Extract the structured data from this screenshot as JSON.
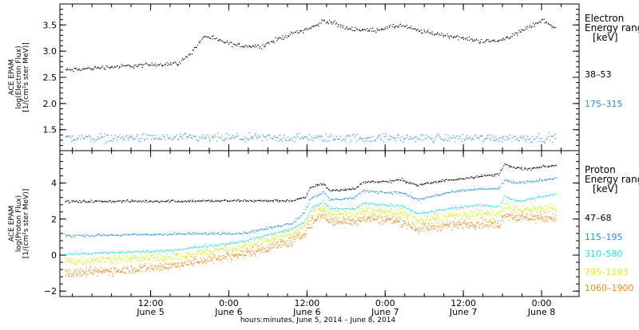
{
  "chart_data": [
    {
      "panel": "electron",
      "type": "scatter",
      "ylabel": [
        "ACE EPAM",
        "log(Electron Flux)",
        "[1/(cm²s ster MeV)]"
      ],
      "ylim": [
        1.1,
        3.9
      ],
      "yticks": [
        1.5,
        2.0,
        2.5,
        3.0,
        3.5
      ],
      "ytick_labels": [
        "1.5",
        "2.0",
        "2.5",
        "3.0",
        "3.5"
      ],
      "legend": {
        "title_line1": "Electron",
        "title_line2": "Energy range",
        "units": "[keV]"
      },
      "series": [
        {
          "name": "38–53",
          "color": "#000000",
          "knots": [
            [
              0.0,
              2.65
            ],
            [
              0.1,
              2.7
            ],
            [
              0.2,
              2.73
            ],
            [
              0.34,
              2.78
            ],
            [
              0.38,
              3.0
            ],
            [
              0.42,
              3.3
            ],
            [
              0.47,
              3.2
            ],
            [
              0.52,
              3.12
            ],
            [
              0.6,
              3.1
            ],
            [
              0.68,
              3.3
            ],
            [
              0.78,
              3.5
            ],
            [
              0.8,
              3.6
            ],
            [
              0.83,
              3.55
            ],
            [
              0.87,
              3.45
            ],
            [
              0.95,
              3.4
            ],
            [
              1.05,
              3.5
            ],
            [
              1.1,
              3.4
            ],
            [
              1.2,
              3.3
            ],
            [
              1.3,
              3.2
            ],
            [
              1.36,
              3.2
            ],
            [
              1.42,
              3.35
            ],
            [
              1.5,
              3.6
            ],
            [
              1.53,
              3.5
            ],
            [
              1.54,
              3.45
            ]
          ]
        },
        {
          "name": "175–315",
          "color": "#1e90dc",
          "knots": [
            [
              0.0,
              1.35
            ],
            [
              1.54,
              1.35
            ]
          ]
        }
      ]
    },
    {
      "panel": "proton",
      "type": "scatter",
      "ylabel": [
        "ACE EPAM",
        "log(Proton Flux)",
        "[1/(cm²s ster MeV)]"
      ],
      "ylim": [
        -2.3,
        5.8
      ],
      "yticks": [
        -2,
        0,
        2,
        4
      ],
      "ytick_labels": [
        "−2",
        "0",
        "2",
        "4"
      ],
      "legend": {
        "title_line1": "Proton",
        "title_line2": "Energy range",
        "units": "[keV]"
      },
      "series": [
        {
          "name": "47–68",
          "color": "#000000",
          "knots": [
            [
              0.0,
              3.0
            ],
            [
              0.7,
              3.05
            ],
            [
              0.74,
              3.2
            ],
            [
              0.76,
              3.8
            ],
            [
              0.8,
              4.0
            ],
            [
              0.82,
              3.6
            ],
            [
              0.9,
              3.7
            ],
            [
              0.93,
              4.1
            ],
            [
              1.0,
              4.1
            ],
            [
              1.05,
              4.2
            ],
            [
              1.1,
              3.9
            ],
            [
              1.2,
              4.2
            ],
            [
              1.3,
              4.4
            ],
            [
              1.36,
              4.5
            ],
            [
              1.38,
              5.1
            ],
            [
              1.4,
              4.9
            ],
            [
              1.45,
              4.8
            ],
            [
              1.54,
              5.0
            ]
          ]
        },
        {
          "name": "115–195",
          "color": "#1e90dc",
          "knots": [
            [
              0.0,
              1.1
            ],
            [
              0.55,
              1.25
            ],
            [
              0.7,
              1.8
            ],
            [
              0.74,
              2.4
            ],
            [
              0.76,
              3.2
            ],
            [
              0.8,
              3.5
            ],
            [
              0.82,
              3.1
            ],
            [
              0.9,
              3.2
            ],
            [
              0.93,
              3.6
            ],
            [
              1.0,
              3.5
            ],
            [
              1.05,
              3.5
            ],
            [
              1.1,
              3.1
            ],
            [
              1.2,
              3.5
            ],
            [
              1.3,
              3.7
            ],
            [
              1.36,
              3.7
            ],
            [
              1.38,
              4.2
            ],
            [
              1.42,
              4.0
            ],
            [
              1.54,
              4.3
            ]
          ]
        },
        {
          "name": "310–580",
          "color": "#20e0e0",
          "knots": [
            [
              0.0,
              0.1
            ],
            [
              0.3,
              0.25
            ],
            [
              0.55,
              0.8
            ],
            [
              0.7,
              1.5
            ],
            [
              0.74,
              1.9
            ],
            [
              0.76,
              2.6
            ],
            [
              0.8,
              3.0
            ],
            [
              0.82,
              2.6
            ],
            [
              0.9,
              2.6
            ],
            [
              0.93,
              2.9
            ],
            [
              1.0,
              2.8
            ],
            [
              1.05,
              2.8
            ],
            [
              1.1,
              2.3
            ],
            [
              1.2,
              2.6
            ],
            [
              1.3,
              2.8
            ],
            [
              1.36,
              2.7
            ],
            [
              1.38,
              3.3
            ],
            [
              1.42,
              3.0
            ],
            [
              1.54,
              3.4
            ]
          ]
        },
        {
          "name": "795–1193",
          "color": "#d8ec20",
          "knots": [
            [
              0.0,
              -0.3
            ],
            [
              0.3,
              -0.1
            ],
            [
              0.55,
              0.5
            ],
            [
              0.7,
              1.2
            ],
            [
              0.74,
              1.6
            ],
            [
              0.76,
              2.2
            ],
            [
              0.8,
              2.7
            ],
            [
              0.82,
              2.3
            ],
            [
              0.9,
              2.3
            ],
            [
              0.93,
              2.5
            ],
            [
              1.0,
              2.4
            ],
            [
              1.05,
              2.4
            ],
            [
              1.1,
              1.9
            ],
            [
              1.2,
              2.2
            ],
            [
              1.3,
              2.3
            ],
            [
              1.36,
              2.3
            ],
            [
              1.38,
              2.8
            ],
            [
              1.42,
              2.5
            ],
            [
              1.54,
              2.7
            ]
          ]
        },
        {
          "name": "1060–1900",
          "color": "#f08a18",
          "knots": [
            [
              0.0,
              -1.0
            ],
            [
              0.3,
              -0.6
            ],
            [
              0.55,
              0.1
            ],
            [
              0.7,
              0.8
            ],
            [
              0.74,
              1.2
            ],
            [
              0.76,
              1.8
            ],
            [
              0.8,
              2.3
            ],
            [
              0.82,
              1.9
            ],
            [
              0.9,
              1.9
            ],
            [
              0.93,
              2.1
            ],
            [
              1.0,
              2.0
            ],
            [
              1.05,
              1.9
            ],
            [
              1.1,
              1.5
            ],
            [
              1.2,
              1.7
            ],
            [
              1.3,
              1.8
            ],
            [
              1.36,
              1.7
            ],
            [
              1.38,
              2.3
            ],
            [
              1.42,
              2.1
            ],
            [
              1.54,
              2.1
            ]
          ]
        }
      ]
    }
  ],
  "xaxis": {
    "title": "hours:minutes, June  5, 2014 – June  8, 2014",
    "ticks": [
      {
        "label": "12:00",
        "sublabel": "June 5",
        "x": 0.25
      },
      {
        "label": "0:00",
        "sublabel": "June 6",
        "x": 0.5
      },
      {
        "label": "12:00",
        "sublabel": "June 6",
        "x": 0.75
      },
      {
        "label": "0:00",
        "sublabel": "June 7",
        "x": 1.0
      },
      {
        "label": "12:00",
        "sublabel": "June 7",
        "x": 1.25
      },
      {
        "label": "0:00",
        "sublabel": "June 8",
        "x": 1.5
      }
    ],
    "minor_step": 0.0625,
    "xlim": [
      -0.04,
      1.62
    ]
  }
}
